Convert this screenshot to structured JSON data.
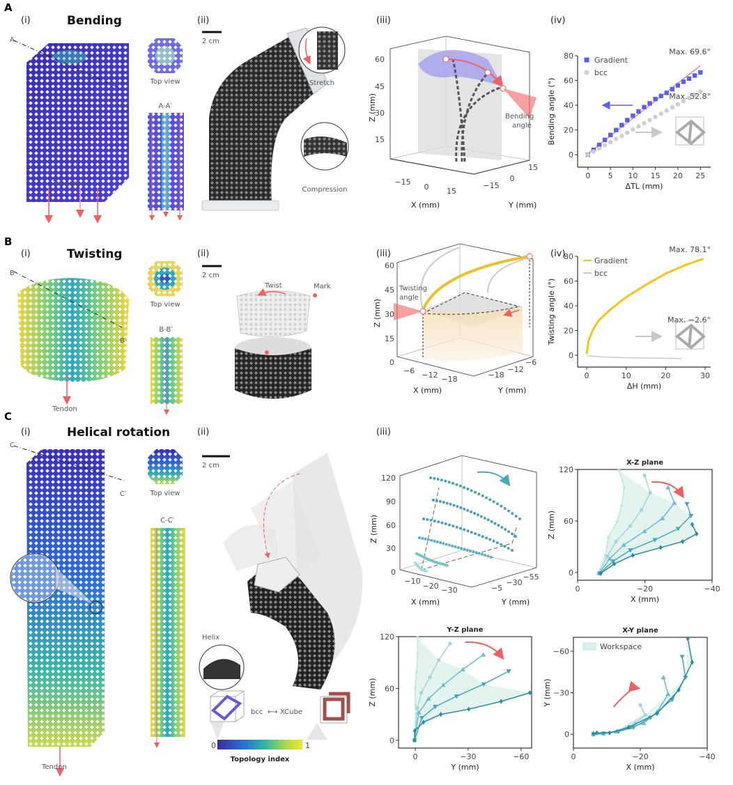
{
  "panels": {
    "A": {
      "letter": "A",
      "title": "Bending",
      "sub": [
        "(i)",
        "(ii)",
        "(iii)",
        "(iv)"
      ],
      "i": {
        "section_start": "A",
        "section_end": "A′",
        "top_view": "Top view",
        "section": "A-A′",
        "tendons": "Tendons"
      },
      "ii": {
        "scale": "2 cm",
        "stretch": "Stretch",
        "compression": "Compression"
      },
      "iii": {
        "z_ticks": [
          "60",
          "45",
          "30",
          "15"
        ],
        "x_ticks": [
          "−15",
          "0",
          "15"
        ],
        "y_ticks": [
          "−15",
          "0",
          "15"
        ],
        "xlabel": "X (mm)",
        "ylabel": "Y (mm)",
        "zlabel": "Z (mm)",
        "annotation_1": "Bending",
        "annotation_2": "angle"
      }
    },
    "B": {
      "letter": "B",
      "title": "Twisting",
      "sub": [
        "(i)",
        "(ii)",
        "(iii)",
        "(iv)"
      ],
      "i": {
        "section_start": "B",
        "section_end": "B′",
        "top_view": "Top view",
        "section": "B-B′",
        "tendon": "Tendon"
      },
      "ii": {
        "scale": "2 cm",
        "twist": "Twist",
        "mark": "Mark"
      },
      "iii": {
        "z_ticks": [
          "60",
          "45",
          "30",
          "15",
          "0"
        ],
        "x_ticks": [
          "−6",
          "−12",
          "−18"
        ],
        "y_ticks": [
          "−18",
          "−12",
          "−6"
        ],
        "xlabel": "X (mm)",
        "ylabel": "Y (mm)",
        "zlabel": "Z (mm)",
        "annotation_1": "Twisting",
        "annotation_2": "angle"
      }
    },
    "C": {
      "letter": "C",
      "title": "Helical rotation",
      "sub": [
        "(i)",
        "(ii)",
        "(iii)"
      ],
      "i": {
        "section_start": "C",
        "section_end": "C′",
        "top_view": "Top view",
        "section": "C-C′",
        "tendon": "Tendon"
      },
      "ii": {
        "scale": "2 cm",
        "helix": "Helix",
        "unit_a": "bcc",
        "arrow": "⟷",
        "unit_b": "XCube",
        "cbar_min": "0",
        "cbar_max": "1",
        "cbar_label": "Topology index"
      },
      "iii": {
        "z_ticks": [
          "120",
          "90",
          "60",
          "30",
          "0"
        ],
        "x_ticks": [
          "−10",
          "−20",
          "−30"
        ],
        "y_ticks": [
          "−5",
          "−30",
          "−55"
        ],
        "xlabel": "X (mm)",
        "ylabel": "Y (mm)",
        "zlabel": "Z (mm)"
      }
    }
  },
  "colors": {
    "gradient_blue": "#5b5ff0",
    "bcc_gray": "#c8c8c8",
    "gradient_yellow": "#f5c518",
    "fit_red": "#f07070",
    "teal": "#2b8aa3",
    "arrow_red": "#f06060"
  },
  "chart_data": [
    {
      "type": "scatter",
      "panel": "A(iv)",
      "xlabel": "ΔTL (mm)",
      "ylabel": "Bending angle (°)",
      "xlim": [
        -2.3,
        27.3
      ],
      "ylim": [
        -10,
        80
      ],
      "xticks": [
        0,
        5,
        10,
        15,
        20,
        25
      ],
      "yticks": [
        0,
        20,
        40,
        60,
        80
      ],
      "legend": "top-left",
      "series": [
        {
          "name": "Gradient",
          "color": "#5b5ff0",
          "marker": "square",
          "x": [
            0,
            1.25,
            2.5,
            3.75,
            5,
            6.25,
            7.5,
            8.75,
            10,
            11.25,
            12.5,
            13.75,
            15,
            16.25,
            17.5,
            18.75,
            20,
            21.25,
            22.5,
            23.75,
            25
          ],
          "y": [
            0,
            4,
            8,
            12,
            16,
            20,
            24,
            28,
            31.5,
            35,
            38.5,
            41.5,
            45,
            47.5,
            50,
            53,
            56,
            59,
            61.5,
            64,
            66.5
          ]
        },
        {
          "name": "bcc",
          "color": "#cfcfcf",
          "marker": "circle",
          "x": [
            0,
            1.25,
            2.5,
            3.75,
            5,
            6.25,
            7.5,
            8.75,
            10,
            11.25,
            12.5,
            13.75,
            15,
            16.25,
            17.5,
            18.75,
            20,
            21.25,
            22.5,
            23.75,
            25
          ],
          "y": [
            0,
            2.6,
            5.1,
            7.7,
            10.2,
            12.8,
            15.3,
            17.9,
            20.4,
            23,
            25.5,
            28.1,
            30.6,
            33.2,
            35.7,
            38.3,
            40.8,
            43.4,
            45.9,
            48.5,
            51
          ]
        }
      ],
      "fit_line": {
        "color": "#f07070",
        "points": [
          [
            0,
            1
          ],
          [
            25,
            72
          ]
        ]
      },
      "annotations": [
        "Max. 69.6°",
        "Max. 52.8°"
      ]
    },
    {
      "type": "line",
      "panel": "B(iv)",
      "xlabel": "ΔH (mm)",
      "ylabel": "Twisting angle (°)",
      "xlim": [
        -2.3,
        31.4
      ],
      "ylim": [
        -9.6,
        80
      ],
      "xticks": [
        0,
        10,
        20,
        30
      ],
      "yticks": [
        0,
        20,
        40,
        60,
        80
      ],
      "legend": "top-left",
      "series": [
        {
          "name": "Gradient",
          "color": "#f5c518",
          "marker": "none",
          "x": [
            0,
            0.5,
            1.5,
            3,
            6,
            10,
            15,
            20,
            25,
            29.5
          ],
          "y": [
            1,
            12,
            20,
            28,
            37,
            47,
            57,
            66,
            73,
            78
          ]
        },
        {
          "name": "bcc",
          "color": "#c8c8c8",
          "marker": "none",
          "x": [
            0,
            5,
            10,
            15,
            20,
            24
          ],
          "y": [
            -0.5,
            -1.5,
            -2,
            -2.3,
            -2.5,
            -2.6
          ]
        }
      ],
      "annotations": [
        "Max. 78.1°",
        "Max. −2.6°"
      ]
    },
    {
      "type": "line",
      "panel": "C(iii)",
      "title": "X-Z plane",
      "xlabel": "X (mm)",
      "ylabel": "Z (mm)",
      "xlim": [
        0,
        -40
      ],
      "ylim": [
        -9,
        120
      ],
      "xticks": [
        0,
        -20,
        -40
      ],
      "yticks": [
        0,
        60,
        120
      ],
      "workspace": true,
      "series": [
        {
          "color": "#bfe6df",
          "marker": "circle-small",
          "x": [
            -6.1,
            -8.3,
            -9.1,
            -11.7,
            -13.1,
            -13.9,
            -12.3
          ],
          "y": [
            -1,
            20,
            41,
            59,
            78,
            99,
            119
          ]
        },
        {
          "color": "#a3d4dc",
          "marker": "circle",
          "x": [
            -6.3,
            -8.8,
            -11.4,
            -15.6,
            -19,
            -21.6,
            -19.9
          ],
          "y": [
            -1,
            19,
            36,
            54,
            73,
            93,
            113
          ]
        },
        {
          "color": "#6cbccb",
          "marker": "triangle-up",
          "x": [
            -6.4,
            -9.5,
            -13.7,
            -19.9,
            -25.2,
            -28.8,
            -26.9
          ],
          "y": [
            -1,
            16,
            32,
            48,
            63,
            81,
            99
          ]
        },
        {
          "color": "#45a5bb",
          "marker": "triangle-down",
          "x": [
            -6.6,
            -10.5,
            -15.7,
            -23,
            -29.9,
            -33.7,
            -32.5
          ],
          "y": [
            -1,
            13,
            26,
            38,
            51,
            66,
            80
          ]
        },
        {
          "color": "#2b8aa3",
          "marker": "diamond",
          "x": [
            -6.9,
            -10.9,
            -16.4,
            -24.7,
            -31.2,
            -35.4,
            -34.1
          ],
          "y": [
            -1,
            10,
            20,
            29,
            36,
            45,
            56
          ]
        }
      ]
    },
    {
      "type": "line",
      "panel": "C(iii)",
      "title": "Y-Z plane",
      "xlabel": "Y (mm)",
      "ylabel": "Z (mm)",
      "xlim": [
        9.5,
        -66
      ],
      "ylim": [
        -9,
        120
      ],
      "xticks": [
        0,
        -30,
        -60
      ],
      "yticks": [
        0,
        60,
        120
      ],
      "workspace": true,
      "series": [
        {
          "color": "#bfe6df",
          "marker": "circle-small",
          "x": [
            0.7,
            -0.1,
            -0.1,
            0.1,
            -0.7,
            -1.4,
            -1.3
          ],
          "y": [
            0,
            21,
            40,
            60,
            79,
            100,
            119
          ]
        },
        {
          "color": "#a3d4dc",
          "marker": "circle",
          "x": [
            0.4,
            -1.2,
            -3.4,
            -8.3,
            -13.3,
            -19.7
          ],
          "y": [
            0,
            37,
            55,
            73,
            93,
            112
          ]
        },
        {
          "color": "#6cbccb",
          "marker": "triangle-up",
          "x": [
            0.4,
            -2,
            -7.5,
            -15.9,
            -27,
            -38.6
          ],
          "y": [
            0,
            32,
            48,
            64,
            82,
            99
          ]
        },
        {
          "color": "#45a5bb",
          "marker": "triangle-down",
          "x": [
            0.4,
            -3.7,
            -11.3,
            -23.4,
            -38.8,
            -53
          ],
          "y": [
            0,
            26,
            39,
            51,
            65,
            80
          ]
        },
        {
          "color": "#2b8aa3",
          "marker": "diamond",
          "x": [
            0.4,
            0.3,
            -4.6,
            -14.5,
            -30.3,
            -48.7,
            -65
          ],
          "y": [
            0,
            11,
            21,
            30,
            36,
            45,
            55
          ]
        }
      ]
    },
    {
      "type": "line",
      "panel": "C(iii)",
      "title": "X-Y plane",
      "xlabel": "X (mm)",
      "ylabel": "Y (mm)",
      "xlim": [
        0,
        -40
      ],
      "ylim": [
        10,
        -70
      ],
      "xticks": [
        0,
        -20,
        -40
      ],
      "yticks": [
        0,
        -30,
        -60
      ],
      "legend": "top-left",
      "legend_entry": "Workspace",
      "workspace": true,
      "series": [
        {
          "color": "#bfe6df",
          "marker": "circle-small",
          "x": [
            -5.7,
            -8.4,
            -12.5,
            -21.4,
            -20
          ],
          "y": [
            0.7,
            -0.5,
            -1.3,
            -14.2,
            -20.9
          ]
        },
        {
          "color": "#a3d4dc",
          "marker": "circle",
          "x": [
            -5.8,
            -9,
            -13,
            -18.5,
            -21.5,
            -20
          ],
          "y": [
            0,
            -1,
            -2,
            -8,
            -14,
            -21
          ]
        },
        {
          "color": "#6cbccb",
          "marker": "triangle-up",
          "x": [
            -6,
            -9,
            -13,
            -17,
            -21,
            -25,
            -28.3,
            -26.9
          ],
          "y": [
            0,
            -0.5,
            -2,
            -5,
            -8,
            -16,
            -29,
            -41
          ]
        },
        {
          "color": "#45a5bb",
          "marker": "triangle-down",
          "x": [
            -6,
            -9,
            -13.5,
            -18,
            -23,
            -29.5,
            -33.5,
            -32.5
          ],
          "y": [
            0,
            -0.5,
            -2,
            -5,
            -12,
            -25,
            -41,
            -56
          ]
        },
        {
          "color": "#2b8aa3",
          "marker": "diamond",
          "x": [
            -6,
            -7,
            -10.8,
            -16.5,
            -25,
            -31.5,
            -35.5,
            -34.2
          ],
          "y": [
            -0.5,
            -1,
            -1,
            -5,
            -15,
            -32,
            -52,
            -69
          ]
        }
      ]
    }
  ]
}
